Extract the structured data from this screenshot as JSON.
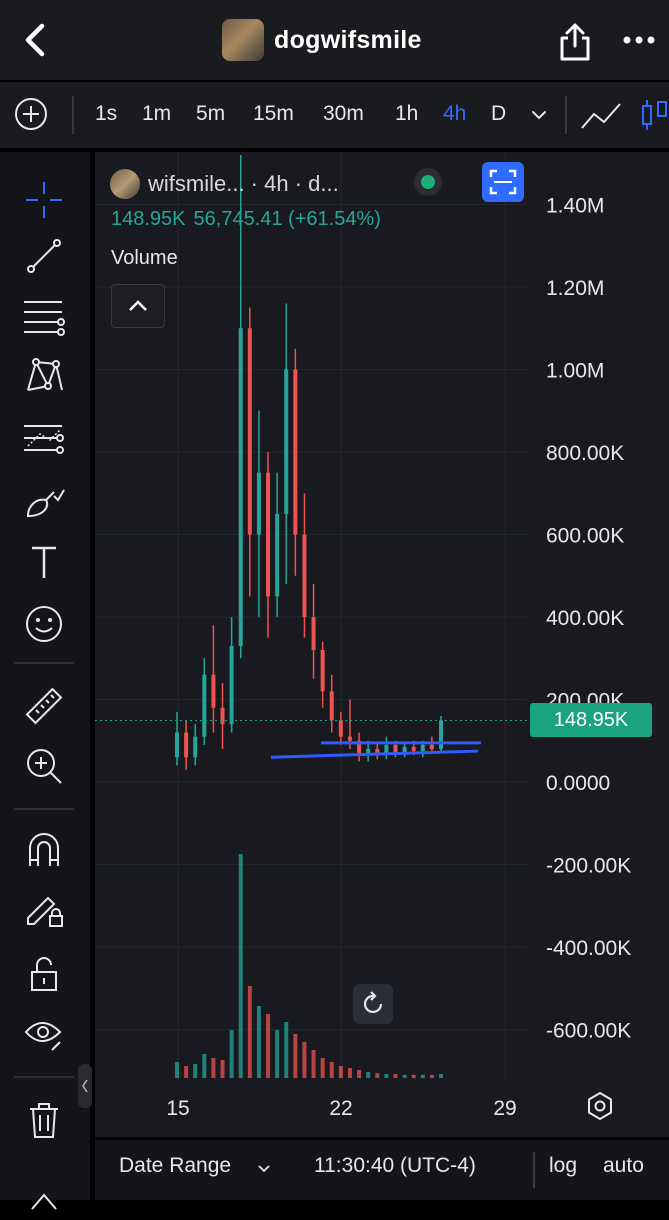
{
  "header": {
    "title": "dogwifsmile",
    "back_icon": "chevron-left-icon",
    "share_icon": "share-icon",
    "more_icon": "more-horizontal-icon"
  },
  "timeframes": {
    "add_icon": "plus-circle-icon",
    "items": [
      "1s",
      "1m",
      "5m",
      "15m",
      "30m",
      "1h",
      "4h",
      "D"
    ],
    "active": "4h",
    "chart_type_icon": "line-chart-icon"
  },
  "drawing_tools": [
    "crosshair-icon",
    "trend-line-icon",
    "fib-lines-icon",
    "pattern-icon",
    "forecast-icon",
    "brush-icon",
    "text-icon",
    "emoji-icon",
    "ruler-icon",
    "zoom-in-icon",
    "magnet-icon",
    "lock-drawing-icon",
    "unlock-icon",
    "eye-icon",
    "trash-icon"
  ],
  "legend": {
    "symbol": "wifsmile... · 4h · d...",
    "last_price": "148.95K",
    "change": "56,745.41 (+61.54%)",
    "volume_label": "Volume"
  },
  "price_axis": {
    "labels": [
      "1.40M",
      "1.20M",
      "1.00M",
      "800.00K",
      "600.00K",
      "400.00K",
      "200.00K",
      "0.0000",
      "-200.00K",
      "-400.00K",
      "-600.00K"
    ],
    "current": "148.95K"
  },
  "time_axis": {
    "labels": [
      "15",
      "22",
      "29"
    ]
  },
  "bottom_bar": {
    "date_range": "Date Range",
    "time": "11:30:40 (UTC-4)",
    "log": "log",
    "auto": "auto"
  },
  "colors": {
    "up": "#26a69a",
    "down": "#ef5350",
    "accent": "#2f6bff",
    "price_tag": "#1aa37f",
    "drawn_line": "#2f5bff"
  },
  "chart_data": {
    "type": "candlestick",
    "symbol": "wifsmile",
    "interval": "4h",
    "ylim": [
      -700000,
      1500000
    ],
    "x_ticks": [
      "15",
      "22",
      "29"
    ],
    "last_price": 148950,
    "candles_approx": [
      {
        "o": 60000,
        "h": 170000,
        "l": 40000,
        "c": 120000
      },
      {
        "o": 120000,
        "h": 150000,
        "l": 30000,
        "c": 60000
      },
      {
        "o": 60000,
        "h": 140000,
        "l": 40000,
        "c": 110000
      },
      {
        "o": 110000,
        "h": 300000,
        "l": 90000,
        "c": 260000
      },
      {
        "o": 260000,
        "h": 380000,
        "l": 120000,
        "c": 180000
      },
      {
        "o": 180000,
        "h": 240000,
        "l": 80000,
        "c": 140000
      },
      {
        "o": 140000,
        "h": 400000,
        "l": 120000,
        "c": 330000
      },
      {
        "o": 330000,
        "h": 1520000,
        "l": 300000,
        "c": 1100000
      },
      {
        "o": 1100000,
        "h": 1150000,
        "l": 450000,
        "c": 600000
      },
      {
        "o": 600000,
        "h": 900000,
        "l": 400000,
        "c": 750000
      },
      {
        "o": 750000,
        "h": 800000,
        "l": 350000,
        "c": 450000
      },
      {
        "o": 450000,
        "h": 750000,
        "l": 400000,
        "c": 650000
      },
      {
        "o": 650000,
        "h": 1160000,
        "l": 480000,
        "c": 1000000
      },
      {
        "o": 1000000,
        "h": 1050000,
        "l": 500000,
        "c": 600000
      },
      {
        "o": 600000,
        "h": 700000,
        "l": 350000,
        "c": 400000
      },
      {
        "o": 400000,
        "h": 480000,
        "l": 250000,
        "c": 320000
      },
      {
        "o": 320000,
        "h": 340000,
        "l": 180000,
        "c": 220000
      },
      {
        "o": 220000,
        "h": 260000,
        "l": 120000,
        "c": 150000
      },
      {
        "o": 150000,
        "h": 170000,
        "l": 90000,
        "c": 110000
      },
      {
        "o": 110000,
        "h": 200000,
        "l": 80000,
        "c": 100000
      },
      {
        "o": 100000,
        "h": 120000,
        "l": 50000,
        "c": 70000
      },
      {
        "o": 70000,
        "h": 100000,
        "l": 50000,
        "c": 80000
      },
      {
        "o": 80000,
        "h": 95000,
        "l": 55000,
        "c": 65000
      },
      {
        "o": 65000,
        "h": 110000,
        "l": 55000,
        "c": 90000
      },
      {
        "o": 90000,
        "h": 100000,
        "l": 60000,
        "c": 70000
      },
      {
        "o": 70000,
        "h": 95000,
        "l": 60000,
        "c": 85000
      },
      {
        "o": 85000,
        "h": 100000,
        "l": 65000,
        "c": 75000
      },
      {
        "o": 75000,
        "h": 100000,
        "l": 60000,
        "c": 90000
      },
      {
        "o": 90000,
        "h": 110000,
        "l": 70000,
        "c": 80000
      },
      {
        "o": 80000,
        "h": 160000,
        "l": 75000,
        "c": 148950
      }
    ],
    "volume_approx": [
      40,
      30,
      35,
      60,
      50,
      45,
      120,
      560,
      230,
      180,
      160,
      120,
      140,
      110,
      90,
      70,
      50,
      40,
      30,
      25,
      20,
      15,
      12,
      10,
      10,
      8,
      8,
      8,
      8,
      10
    ],
    "drawn_lines": [
      {
        "from_price": 95000,
        "to_price": 95000
      },
      {
        "from_price": 60000,
        "to_price": 75000
      }
    ]
  }
}
